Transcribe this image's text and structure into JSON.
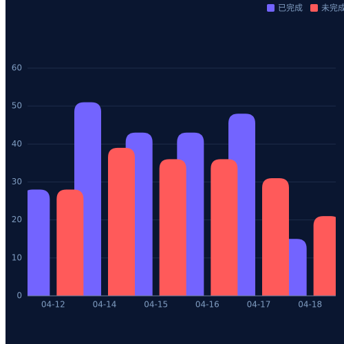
{
  "chart_data": {
    "type": "bar",
    "categories": [
      "04-12",
      "04-14",
      "04-15",
      "04-16",
      "04-17",
      "04-18"
    ],
    "series": [
      {
        "name": "已完成",
        "color": "#7364ff",
        "values": [
          28,
          51,
          43,
          43,
          48,
          15
        ]
      },
      {
        "name": "未完成",
        "color": "#ff5a5a",
        "values": [
          28,
          39,
          36,
          36,
          31,
          21
        ]
      }
    ],
    "ylim": [
      0,
      60
    ],
    "yticks": [
      0,
      10,
      20,
      30,
      40,
      50,
      60
    ],
    "grid": true,
    "legend": "top-right"
  }
}
